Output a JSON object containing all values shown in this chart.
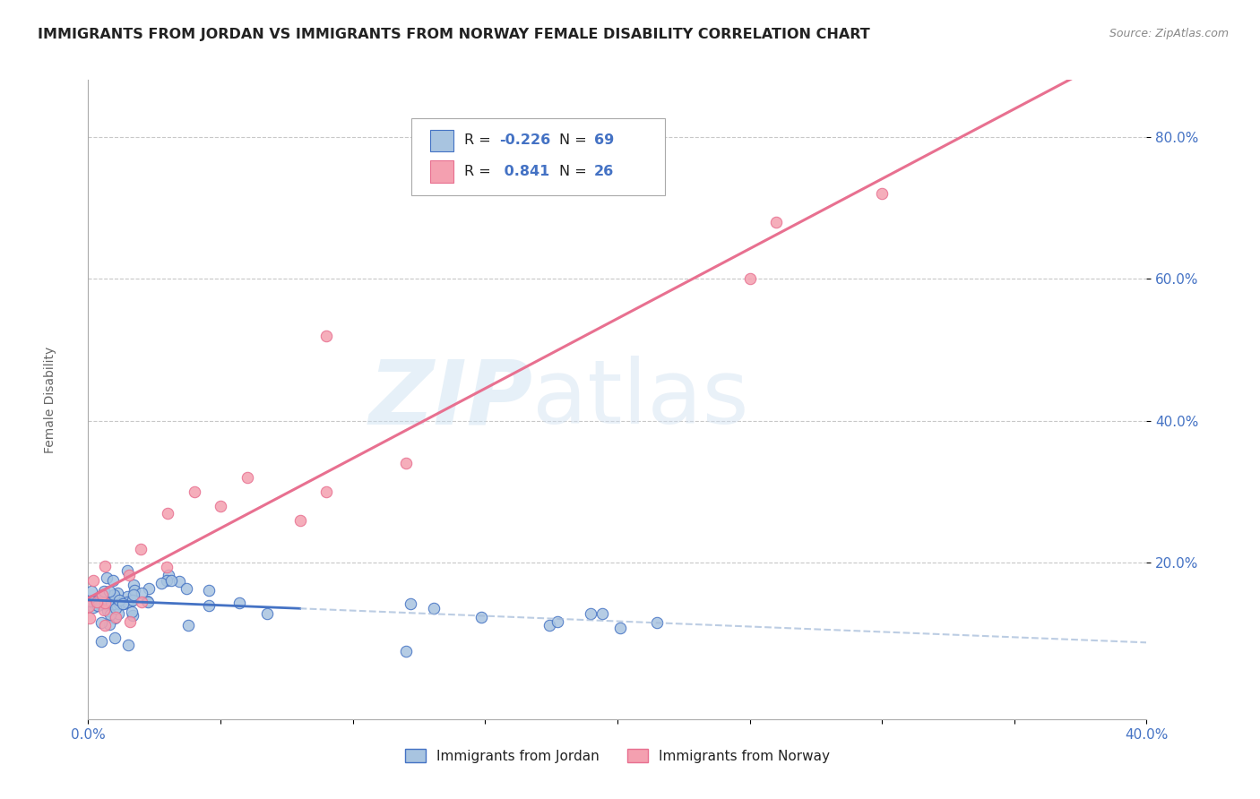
{
  "title": "IMMIGRANTS FROM JORDAN VS IMMIGRANTS FROM NORWAY FEMALE DISABILITY CORRELATION CHART",
  "source": "Source: ZipAtlas.com",
  "ylabel": "Female Disability",
  "legend_label1": "Immigrants from Jordan",
  "legend_label2": "Immigrants from Norway",
  "color_jordan": "#a8c4e0",
  "color_norway": "#f4a0b0",
  "trendline_jordan_solid": "#4472c4",
  "trendline_jordan_dash": "#a0b8d8",
  "trendline_norway": "#e87090",
  "watermark_zip": "#c8dff0",
  "watermark_atlas": "#d0e0f0",
  "background_color": "#ffffff",
  "grid_color": "#c8c8c8",
  "xlim": [
    0.0,
    0.4
  ],
  "ylim": [
    -0.02,
    0.88
  ],
  "y_ticks": [
    0.2,
    0.4,
    0.6,
    0.8
  ],
  "y_tick_labels": [
    "20.0%",
    "40.0%",
    "60.0%",
    "80.0%"
  ],
  "x_ticks": [
    0.0,
    0.05,
    0.1,
    0.15,
    0.2,
    0.25,
    0.3,
    0.35,
    0.4
  ],
  "axis_label_color": "#4472c4",
  "title_color": "#222222",
  "source_color": "#888888",
  "ylabel_color": "#666666"
}
